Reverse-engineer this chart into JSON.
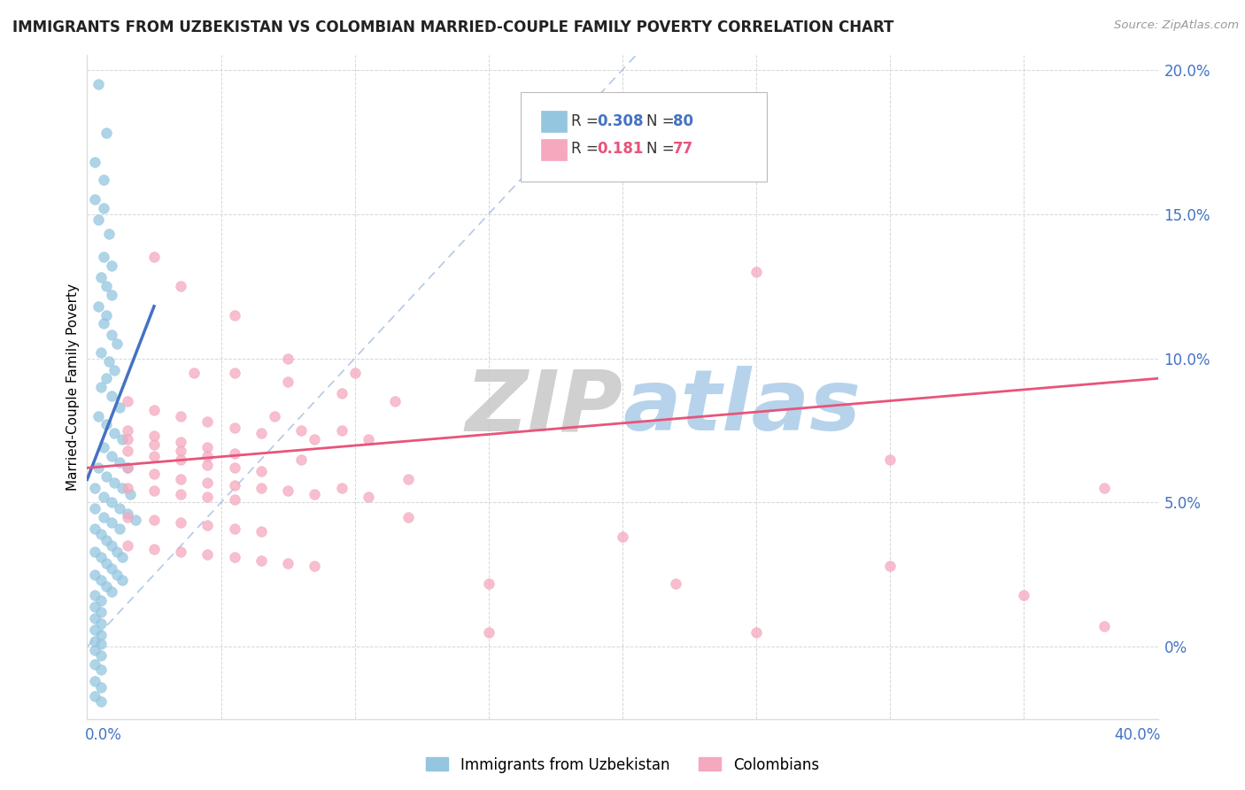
{
  "title": "IMMIGRANTS FROM UZBEKISTAN VS COLOMBIAN MARRIED-COUPLE FAMILY POVERTY CORRELATION CHART",
  "source": "Source: ZipAtlas.com",
  "ylabel": "Married-Couple Family Poverty",
  "color_uzbek": "#94C6E0",
  "color_colombian": "#F5A8BE",
  "color_uzbek_line": "#4472C4",
  "color_colombian_line": "#E8547A",
  "color_ref_line": "#A0BCE0",
  "watermark_zip": "ZIP",
  "watermark_atlas": "atlas",
  "watermark_color_zip": "#C8C8C8",
  "watermark_color_atlas": "#AACCE8",
  "xmin": 0.0,
  "xmax": 0.4,
  "ymin": -0.025,
  "ymax": 0.205,
  "yticks": [
    0.0,
    0.05,
    0.1,
    0.15,
    0.2
  ],
  "ytick_labels": [
    "0%",
    "5.0%",
    "10.0%",
    "15.0%",
    "20.0%"
  ],
  "uzbek_line_x": [
    0.0,
    0.025
  ],
  "uzbek_line_y": [
    0.058,
    0.118
  ],
  "col_line_x": [
    0.0,
    0.4
  ],
  "col_line_y": [
    0.062,
    0.093
  ],
  "ref_line_x": [
    0.0,
    0.205
  ],
  "ref_line_y": [
    0.0,
    0.205
  ],
  "uzbek_scatter": [
    [
      0.004,
      0.195
    ],
    [
      0.007,
      0.178
    ],
    [
      0.003,
      0.168
    ],
    [
      0.006,
      0.162
    ],
    [
      0.003,
      0.155
    ],
    [
      0.006,
      0.152
    ],
    [
      0.004,
      0.148
    ],
    [
      0.008,
      0.143
    ],
    [
      0.006,
      0.135
    ],
    [
      0.009,
      0.132
    ],
    [
      0.005,
      0.128
    ],
    [
      0.007,
      0.125
    ],
    [
      0.009,
      0.122
    ],
    [
      0.004,
      0.118
    ],
    [
      0.007,
      0.115
    ],
    [
      0.006,
      0.112
    ],
    [
      0.009,
      0.108
    ],
    [
      0.011,
      0.105
    ],
    [
      0.005,
      0.102
    ],
    [
      0.008,
      0.099
    ],
    [
      0.01,
      0.096
    ],
    [
      0.007,
      0.093
    ],
    [
      0.005,
      0.09
    ],
    [
      0.009,
      0.087
    ],
    [
      0.012,
      0.083
    ],
    [
      0.004,
      0.08
    ],
    [
      0.007,
      0.077
    ],
    [
      0.01,
      0.074
    ],
    [
      0.013,
      0.072
    ],
    [
      0.006,
      0.069
    ],
    [
      0.009,
      0.066
    ],
    [
      0.012,
      0.064
    ],
    [
      0.015,
      0.062
    ],
    [
      0.004,
      0.062
    ],
    [
      0.007,
      0.059
    ],
    [
      0.01,
      0.057
    ],
    [
      0.013,
      0.055
    ],
    [
      0.016,
      0.053
    ],
    [
      0.003,
      0.055
    ],
    [
      0.006,
      0.052
    ],
    [
      0.009,
      0.05
    ],
    [
      0.012,
      0.048
    ],
    [
      0.015,
      0.046
    ],
    [
      0.018,
      0.044
    ],
    [
      0.003,
      0.048
    ],
    [
      0.006,
      0.045
    ],
    [
      0.009,
      0.043
    ],
    [
      0.012,
      0.041
    ],
    [
      0.003,
      0.041
    ],
    [
      0.005,
      0.039
    ],
    [
      0.007,
      0.037
    ],
    [
      0.009,
      0.035
    ],
    [
      0.011,
      0.033
    ],
    [
      0.013,
      0.031
    ],
    [
      0.003,
      0.033
    ],
    [
      0.005,
      0.031
    ],
    [
      0.007,
      0.029
    ],
    [
      0.009,
      0.027
    ],
    [
      0.011,
      0.025
    ],
    [
      0.013,
      0.023
    ],
    [
      0.003,
      0.025
    ],
    [
      0.005,
      0.023
    ],
    [
      0.007,
      0.021
    ],
    [
      0.009,
      0.019
    ],
    [
      0.003,
      0.018
    ],
    [
      0.005,
      0.016
    ],
    [
      0.003,
      0.014
    ],
    [
      0.005,
      0.012
    ],
    [
      0.003,
      0.01
    ],
    [
      0.005,
      0.008
    ],
    [
      0.003,
      0.006
    ],
    [
      0.005,
      0.004
    ],
    [
      0.003,
      0.002
    ],
    [
      0.005,
      0.001
    ],
    [
      0.003,
      -0.001
    ],
    [
      0.005,
      -0.003
    ],
    [
      0.003,
      -0.006
    ],
    [
      0.005,
      -0.008
    ],
    [
      0.003,
      -0.012
    ],
    [
      0.005,
      -0.014
    ],
    [
      0.003,
      -0.017
    ],
    [
      0.005,
      -0.019
    ]
  ],
  "colombian_scatter": [
    [
      0.025,
      0.135
    ],
    [
      0.035,
      0.125
    ],
    [
      0.055,
      0.115
    ],
    [
      0.075,
      0.1
    ],
    [
      0.25,
      0.13
    ],
    [
      0.04,
      0.095
    ],
    [
      0.055,
      0.095
    ],
    [
      0.075,
      0.092
    ],
    [
      0.095,
      0.088
    ],
    [
      0.115,
      0.085
    ],
    [
      0.015,
      0.085
    ],
    [
      0.025,
      0.082
    ],
    [
      0.035,
      0.08
    ],
    [
      0.045,
      0.078
    ],
    [
      0.055,
      0.076
    ],
    [
      0.065,
      0.074
    ],
    [
      0.085,
      0.072
    ],
    [
      0.1,
      0.095
    ],
    [
      0.015,
      0.075
    ],
    [
      0.025,
      0.073
    ],
    [
      0.035,
      0.071
    ],
    [
      0.045,
      0.069
    ],
    [
      0.055,
      0.067
    ],
    [
      0.07,
      0.08
    ],
    [
      0.015,
      0.068
    ],
    [
      0.025,
      0.066
    ],
    [
      0.035,
      0.065
    ],
    [
      0.045,
      0.063
    ],
    [
      0.055,
      0.062
    ],
    [
      0.065,
      0.061
    ],
    [
      0.08,
      0.065
    ],
    [
      0.015,
      0.072
    ],
    [
      0.025,
      0.07
    ],
    [
      0.035,
      0.068
    ],
    [
      0.045,
      0.066
    ],
    [
      0.08,
      0.075
    ],
    [
      0.015,
      0.062
    ],
    [
      0.025,
      0.06
    ],
    [
      0.035,
      0.058
    ],
    [
      0.045,
      0.057
    ],
    [
      0.055,
      0.056
    ],
    [
      0.065,
      0.055
    ],
    [
      0.075,
      0.054
    ],
    [
      0.085,
      0.053
    ],
    [
      0.015,
      0.055
    ],
    [
      0.025,
      0.054
    ],
    [
      0.035,
      0.053
    ],
    [
      0.045,
      0.052
    ],
    [
      0.055,
      0.051
    ],
    [
      0.12,
      0.058
    ],
    [
      0.015,
      0.045
    ],
    [
      0.025,
      0.044
    ],
    [
      0.035,
      0.043
    ],
    [
      0.045,
      0.042
    ],
    [
      0.055,
      0.041
    ],
    [
      0.065,
      0.04
    ],
    [
      0.12,
      0.045
    ],
    [
      0.015,
      0.035
    ],
    [
      0.025,
      0.034
    ],
    [
      0.035,
      0.033
    ],
    [
      0.045,
      0.032
    ],
    [
      0.055,
      0.031
    ],
    [
      0.065,
      0.03
    ],
    [
      0.075,
      0.029
    ],
    [
      0.085,
      0.028
    ],
    [
      0.2,
      0.038
    ],
    [
      0.3,
      0.028
    ],
    [
      0.15,
      0.022
    ],
    [
      0.22,
      0.022
    ],
    [
      0.35,
      0.018
    ],
    [
      0.25,
      0.005
    ],
    [
      0.38,
      0.007
    ],
    [
      0.15,
      0.005
    ],
    [
      0.095,
      0.055
    ],
    [
      0.105,
      0.052
    ],
    [
      0.095,
      0.075
    ],
    [
      0.105,
      0.072
    ],
    [
      0.3,
      0.065
    ],
    [
      0.38,
      0.055
    ]
  ]
}
